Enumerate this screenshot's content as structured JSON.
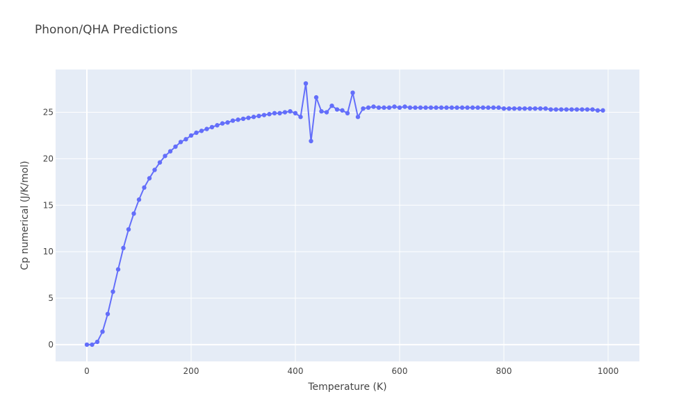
{
  "chart_data": {
    "type": "line",
    "title": "Phonon/QHA Predictions",
    "xlabel": "Temperature (K)",
    "ylabel": "Cp numerical (J/K/mol)",
    "xlim": [
      -60,
      1060
    ],
    "ylim": [
      -1.8,
      29.6
    ],
    "x_ticks": [
      0,
      200,
      400,
      600,
      800,
      1000
    ],
    "x_tick_labels": [
      "0",
      "200",
      "400",
      "600",
      "800",
      "1000"
    ],
    "y_ticks": [
      0,
      5,
      10,
      15,
      20,
      25
    ],
    "y_tick_labels": [
      "0",
      "5",
      "10",
      "15",
      "20",
      "25"
    ],
    "grid": true,
    "colors": {
      "line": "#636efa",
      "plot_bg": "#e5ecf6",
      "grid": "#ffffff",
      "text": "#444444"
    },
    "series": [
      {
        "x": [
          0,
          10,
          20,
          30,
          40,
          50,
          60,
          70,
          80,
          90,
          100,
          110,
          120,
          130,
          140,
          150,
          160,
          170,
          180,
          190,
          200,
          210,
          220,
          230,
          240,
          250,
          260,
          270,
          280,
          290,
          300,
          310,
          320,
          330,
          340,
          350,
          360,
          370,
          380,
          390,
          400,
          410,
          420,
          430,
          440,
          450,
          460,
          470,
          480,
          490,
          500,
          510,
          520,
          530,
          540,
          550,
          560,
          570,
          580,
          590,
          600,
          610,
          620,
          630,
          640,
          650,
          660,
          670,
          680,
          690,
          700,
          710,
          720,
          730,
          740,
          750,
          760,
          770,
          780,
          790,
          800,
          810,
          820,
          830,
          840,
          850,
          860,
          870,
          880,
          890,
          900,
          910,
          920,
          930,
          940,
          950,
          960,
          970,
          980,
          990
        ],
        "values": [
          0.0,
          0.0,
          0.3,
          1.4,
          3.3,
          5.7,
          8.1,
          10.4,
          12.4,
          14.1,
          15.6,
          16.9,
          17.9,
          18.8,
          19.6,
          20.3,
          20.8,
          21.3,
          21.8,
          22.1,
          22.5,
          22.8,
          23.0,
          23.2,
          23.4,
          23.6,
          23.8,
          23.9,
          24.1,
          24.2,
          24.3,
          24.4,
          24.5,
          24.6,
          24.7,
          24.8,
          24.9,
          24.9,
          25.0,
          25.1,
          24.9,
          24.5,
          28.1,
          21.9,
          26.6,
          25.1,
          25.0,
          25.7,
          25.3,
          25.2,
          24.9,
          27.1,
          24.5,
          25.4,
          25.5,
          25.6,
          25.5,
          25.5,
          25.5,
          25.6,
          25.5,
          25.6,
          25.5,
          25.5,
          25.5,
          25.5,
          25.5,
          25.5,
          25.5,
          25.5,
          25.5,
          25.5,
          25.5,
          25.5,
          25.5,
          25.5,
          25.5,
          25.5,
          25.5,
          25.5,
          25.4,
          25.4,
          25.4,
          25.4,
          25.4,
          25.4,
          25.4,
          25.4,
          25.4,
          25.3,
          25.3,
          25.3,
          25.3,
          25.3,
          25.3,
          25.3,
          25.3,
          25.3,
          25.2,
          25.2
        ]
      }
    ]
  }
}
